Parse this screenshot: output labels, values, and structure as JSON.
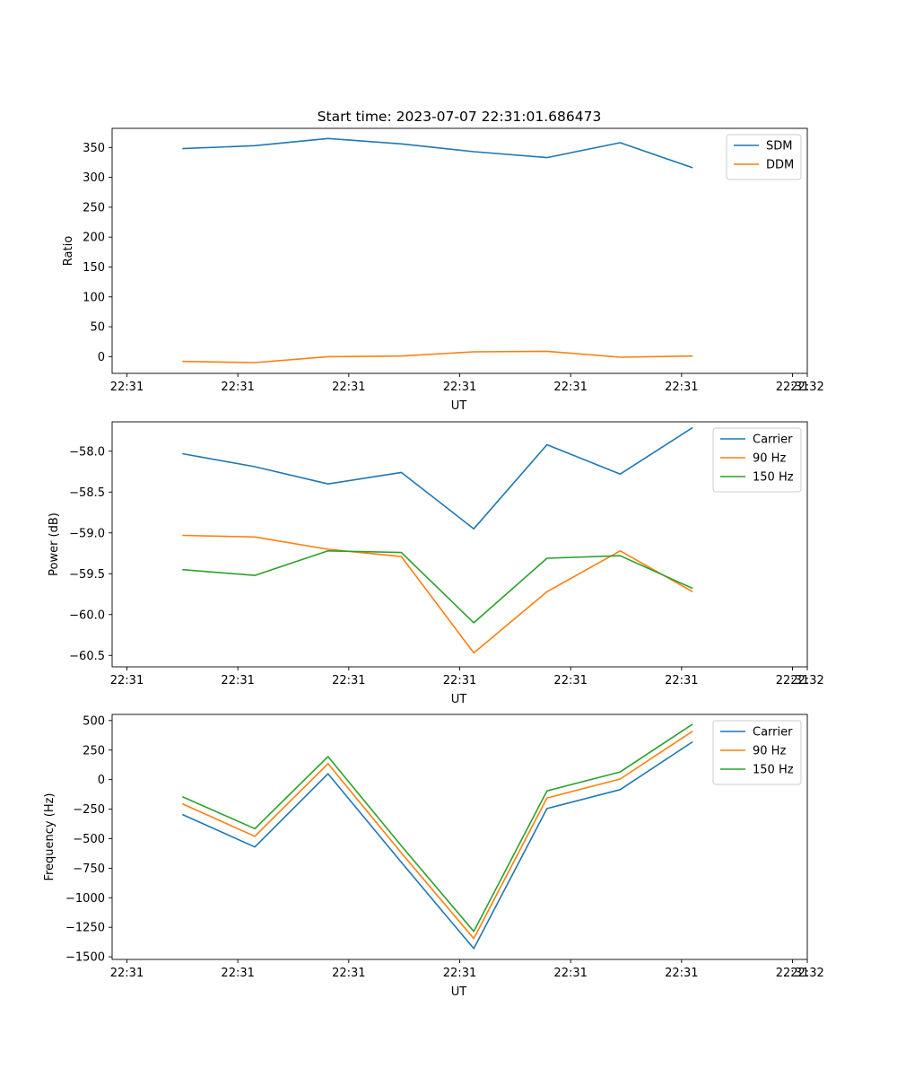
{
  "figure": {
    "title": "Start time: 2023-07-07 22:31:01.686473"
  },
  "chart_data": [
    {
      "type": "line",
      "title": "Start time: 2023-07-07 22:31:01.686473",
      "xlabel": "UT",
      "ylabel": "Ratio",
      "x_tick_labels": [
        "22:31",
        "22:31",
        "22:31",
        "22:31",
        "22:31",
        "22:31",
        "22:31"
      ],
      "x_tick_values": [
        0.0,
        1.5,
        3.0,
        4.5,
        6.0,
        7.5,
        9.0
      ],
      "x_last_tick_label": "22:32",
      "x_last_tick_value": 9.2,
      "xlim": [
        -0.2,
        9.2
      ],
      "x": [
        0.75,
        1.73,
        2.72,
        3.71,
        4.69,
        5.68,
        6.67,
        7.65
      ],
      "ylim": [
        -28,
        382
      ],
      "yticks": [
        0,
        50,
        100,
        150,
        200,
        250,
        300,
        350
      ],
      "legend": "top-right",
      "series": [
        {
          "name": "SDM",
          "color": "#1f77b4",
          "values": [
            348,
            353,
            365,
            356,
            343,
            333,
            358,
            316
          ]
        },
        {
          "name": "DDM",
          "color": "#ff7f0e",
          "values": [
            -8,
            -10,
            0,
            1,
            8,
            9,
            -1,
            1
          ]
        }
      ]
    },
    {
      "type": "line",
      "title": "",
      "xlabel": "UT",
      "ylabel": "Power (dB)",
      "x_tick_labels": [
        "22:31",
        "22:31",
        "22:31",
        "22:31",
        "22:31",
        "22:31",
        "22:31"
      ],
      "x_tick_values": [
        0.0,
        1.5,
        3.0,
        4.5,
        6.0,
        7.5,
        9.0
      ],
      "x_last_tick_label": "22:32",
      "x_last_tick_value": 9.2,
      "xlim": [
        -0.2,
        9.2
      ],
      "x": [
        0.75,
        1.73,
        2.72,
        3.71,
        4.69,
        5.68,
        6.67,
        7.65
      ],
      "ylim": [
        -60.64,
        -57.64
      ],
      "yticks": [
        -60.5,
        -60.0,
        -59.5,
        -59.0,
        -58.5,
        -58.0
      ],
      "ytick_labels": [
        "−60.5",
        "−60.0",
        "−59.5",
        "−59.0",
        "−58.5",
        "−58.0"
      ],
      "legend": "top-right",
      "series": [
        {
          "name": "Carrier",
          "color": "#1f77b4",
          "values": [
            -58.03,
            -58.19,
            -58.4,
            -58.26,
            -58.95,
            -57.92,
            -58.28,
            -57.71
          ]
        },
        {
          "name": "90 Hz",
          "color": "#ff7f0e",
          "values": [
            -59.03,
            -59.05,
            -59.2,
            -59.29,
            -60.47,
            -59.72,
            -59.22,
            -59.72
          ]
        },
        {
          "name": "150 Hz",
          "color": "#2ca02c",
          "values": [
            -59.45,
            -59.52,
            -59.22,
            -59.24,
            -60.1,
            -59.31,
            -59.28,
            -59.68
          ]
        }
      ]
    },
    {
      "type": "line",
      "title": "",
      "xlabel": "UT",
      "ylabel": "Frequency (Hz)",
      "x_tick_labels": [
        "22:31",
        "22:31",
        "22:31",
        "22:31",
        "22:31",
        "22:31",
        "22:31"
      ],
      "x_tick_values": [
        0.0,
        1.5,
        3.0,
        4.5,
        6.0,
        7.5,
        9.0
      ],
      "x_last_tick_label": "22:32",
      "x_last_tick_value": 9.2,
      "xlim": [
        -0.2,
        9.2
      ],
      "x": [
        0.75,
        1.73,
        2.72,
        3.71,
        4.69,
        5.68,
        6.67,
        7.65
      ],
      "ylim": [
        -1522,
        552
      ],
      "yticks": [
        -1500,
        -1250,
        -1000,
        -750,
        -500,
        -250,
        0,
        250,
        500
      ],
      "ytick_labels": [
        "−1500",
        "−1250",
        "−1000",
        "−750",
        "−500",
        "−250",
        "0",
        "250",
        "500"
      ],
      "legend": "top-right",
      "series": [
        {
          "name": "Carrier",
          "color": "#1f77b4",
          "values": [
            -295,
            -570,
            50,
            -700,
            -1430,
            -245,
            -85,
            320
          ]
        },
        {
          "name": "90 Hz",
          "color": "#ff7f0e",
          "values": [
            -205,
            -480,
            135,
            -620,
            -1345,
            -155,
            5,
            410
          ]
        },
        {
          "name": "150 Hz",
          "color": "#2ca02c",
          "values": [
            -145,
            -415,
            195,
            -560,
            -1285,
            -95,
            65,
            470
          ]
        }
      ]
    }
  ]
}
